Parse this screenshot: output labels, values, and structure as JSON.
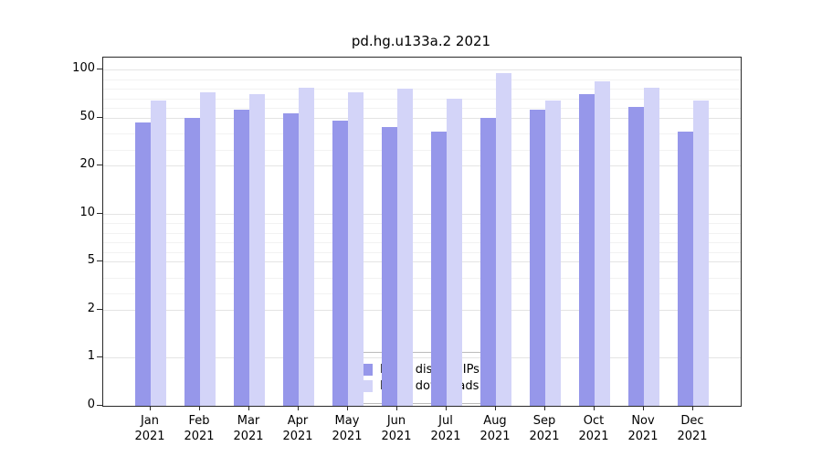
{
  "title": "pd.hg.u133a.2 2021",
  "chart_data": {
    "type": "bar",
    "title": "pd.hg.u133a.2 2021",
    "scale": "quasi-log (ticks 0,1,2,5,10,20,50,100 evenly spaced)",
    "categories": [
      "Jan",
      "Feb",
      "Mar",
      "Apr",
      "May",
      "Jun",
      "Jul",
      "Aug",
      "Sep",
      "Oct",
      "Nov",
      "Dec"
    ],
    "year_label": "2021",
    "y_ticks": [
      0,
      1,
      2,
      5,
      10,
      20,
      50,
      100
    ],
    "ylim": [
      0,
      110
    ],
    "grid": "horizontal major + minor",
    "legend_position": "bottom-center inside plot",
    "series": [
      {
        "name": "Nb of distinct IPs",
        "color": "#9697ea",
        "values": [
          47,
          50,
          58,
          54,
          48,
          44,
          41,
          50,
          58,
          74,
          61,
          41
        ]
      },
      {
        "name": "Nb of downloads",
        "color": "#d3d4f8",
        "values": [
          68,
          76,
          74,
          81,
          76,
          80,
          70,
          96,
          68,
          88,
          81,
          68
        ]
      }
    ]
  }
}
